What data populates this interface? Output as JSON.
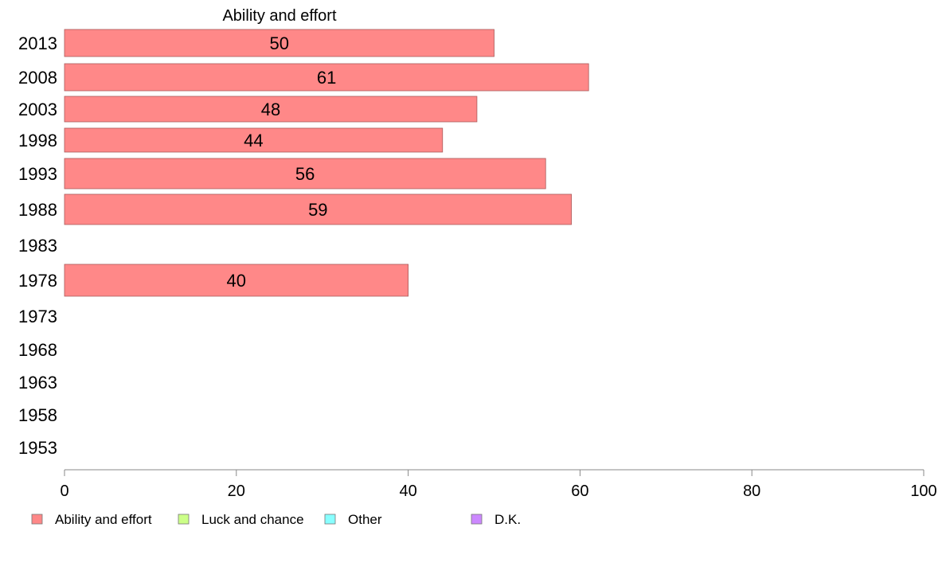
{
  "chart_data": {
    "type": "bar",
    "orientation": "horizontal",
    "title": "Ability and effort",
    "categories": [
      "2013",
      "2008",
      "2003",
      "1998",
      "1993",
      "1988",
      "1983",
      "1978",
      "1973",
      "1968",
      "1963",
      "1958",
      "1953"
    ],
    "series": [
      {
        "name": "Ability and effort",
        "color": "#ff8888",
        "values": [
          50,
          61,
          48,
          44,
          56,
          59,
          null,
          40,
          null,
          null,
          null,
          null,
          null
        ]
      }
    ],
    "xlim": [
      0,
      100
    ],
    "xticks": [
      "0",
      "20",
      "40",
      "60",
      "80",
      "100"
    ],
    "grid": false,
    "legend": {
      "placement": "bottom",
      "items": [
        {
          "label": "Ability and effort",
          "color": "#ff8888"
        },
        {
          "label": "Luck and chance",
          "color": "#ccff88"
        },
        {
          "label": "Other",
          "color": "#88ffff"
        },
        {
          "label": "D.K.",
          "color": "#cc88ff"
        }
      ]
    }
  }
}
